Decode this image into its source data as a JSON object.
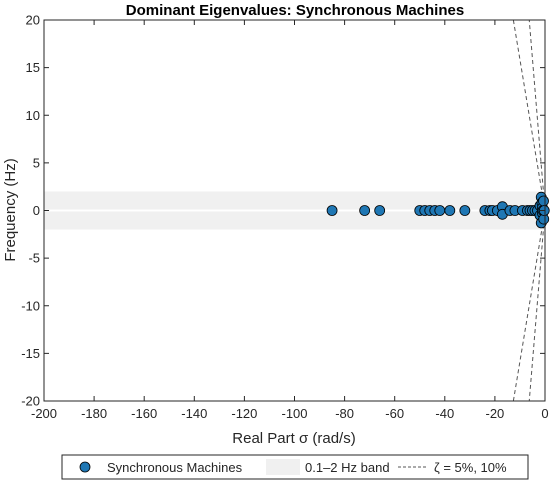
{
  "chart_data": {
    "type": "scatter",
    "title": "Dominant Eigenvalues: Synchronous Machines",
    "xlabel": "Real Part σ (rad/s)",
    "ylabel": "Frequency (Hz)",
    "xlim": [
      -200,
      0
    ],
    "ylim": [
      -20,
      20
    ],
    "xticks": [
      -200,
      -180,
      -160,
      -140,
      -120,
      -100,
      -80,
      -60,
      -40,
      -20,
      0
    ],
    "yticks": [
      -20,
      -15,
      -10,
      -5,
      0,
      5,
      10,
      15,
      20
    ],
    "grid": false,
    "legend_position": "bottom-outside",
    "series": [
      {
        "name": "Synchronous Machines",
        "kind": "points",
        "color": "#1f77b4",
        "edge_color": "#000000",
        "points": [
          {
            "x": -85,
            "y": 0
          },
          {
            "x": -72,
            "y": 0
          },
          {
            "x": -66,
            "y": 0
          },
          {
            "x": -50,
            "y": 0
          },
          {
            "x": -48,
            "y": 0
          },
          {
            "x": -46,
            "y": 0
          },
          {
            "x": -44,
            "y": 0
          },
          {
            "x": -42,
            "y": 0
          },
          {
            "x": -38,
            "y": 0
          },
          {
            "x": -32,
            "y": 0
          },
          {
            "x": -24,
            "y": 0
          },
          {
            "x": -22,
            "y": 0
          },
          {
            "x": -21,
            "y": 0
          },
          {
            "x": -19,
            "y": 0
          },
          {
            "x": -17,
            "y": 0.4
          },
          {
            "x": -17,
            "y": -0.4
          },
          {
            "x": -14,
            "y": 0
          },
          {
            "x": -12,
            "y": 0
          },
          {
            "x": -9,
            "y": 0
          },
          {
            "x": -7,
            "y": 0
          },
          {
            "x": -6,
            "y": 0
          },
          {
            "x": -5,
            "y": 0
          },
          {
            "x": -4,
            "y": 0
          },
          {
            "x": -3,
            "y": 0
          },
          {
            "x": -2,
            "y": 0.5
          },
          {
            "x": -2,
            "y": -0.5
          },
          {
            "x": -1.5,
            "y": 1.4
          },
          {
            "x": -1.5,
            "y": -1.3
          },
          {
            "x": -1.2,
            "y": 0.8
          },
          {
            "x": -1,
            "y": 0.3
          },
          {
            "x": -1,
            "y": -0.3
          },
          {
            "x": -0.8,
            "y": 0
          },
          {
            "x": -0.6,
            "y": 1.0
          },
          {
            "x": -0.5,
            "y": -0.9
          },
          {
            "x": -0.3,
            "y": 0
          }
        ]
      },
      {
        "name": "0.1–2 Hz band",
        "kind": "band",
        "color": "#f0f0f0",
        "ranges": [
          [
            0.1,
            2
          ],
          [
            -2,
            -0.1
          ]
        ]
      },
      {
        "name": "ζ = 5%, 10%",
        "kind": "damping_lines",
        "color": "#555555",
        "damping_ratios": [
          0.05,
          0.1
        ]
      }
    ],
    "legend": {
      "entries": [
        {
          "label": "Synchronous Machines",
          "symbol": "marker"
        },
        {
          "label": "0.1–2 Hz band",
          "symbol": "patch"
        },
        {
          "label": "ζ = 5%, 10%",
          "symbol": "dashed"
        }
      ]
    }
  }
}
